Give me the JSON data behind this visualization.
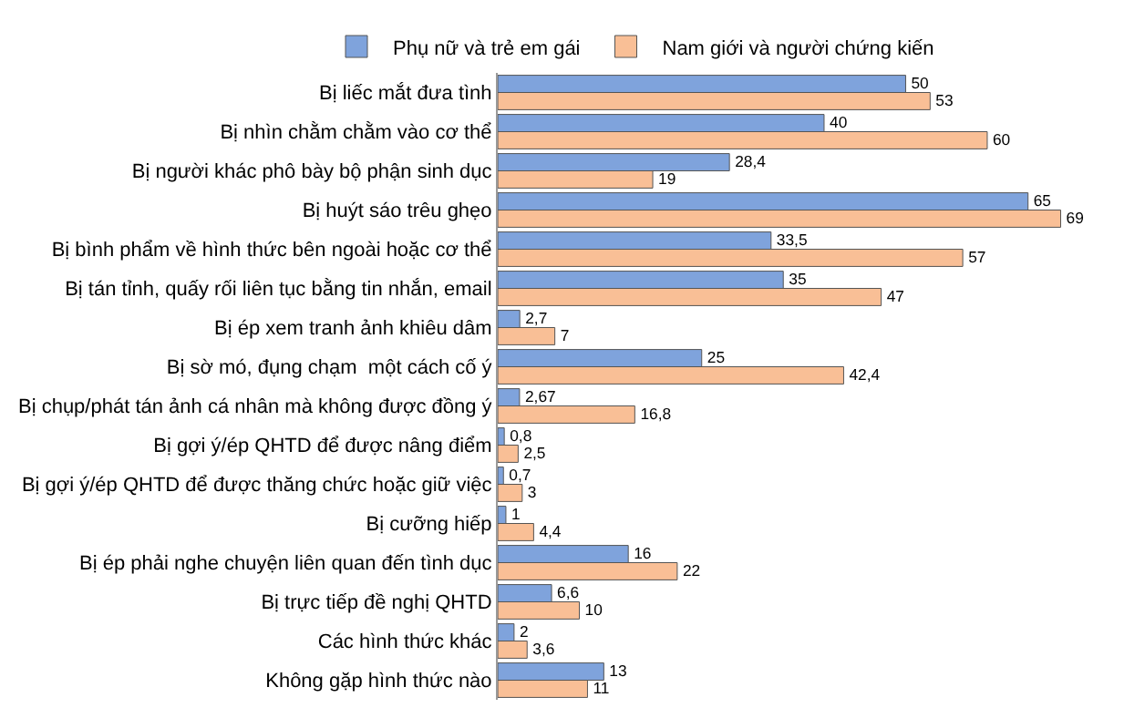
{
  "chart_data": {
    "type": "bar",
    "orientation": "horizontal",
    "legend": "top",
    "tick_labels": "y",
    "categories": [
      "Bị liếc mắt đưa tình",
      "Bị nhìn chằm chằm vào cơ thể",
      "Bị người khác phô bày bộ phận sinh dục",
      "Bị huýt sáo trêu ghẹo",
      "Bị bình phẩm về hình thức bên ngoài hoặc cơ thể",
      "Bị tán tỉnh, quấy rối liên tục bằng tin nhắn, email",
      "Bị ép xem tranh ảnh khiêu dâm",
      "Bị sờ mó, đụng chạm  một cách cố ý",
      "Bị chụp/phát tán ảnh cá nhân mà không được đồng ý",
      "Bị gợi ý/ép QHTD để được nâng điểm",
      "Bị gợi ý/ép QHTD để được thăng chức hoặc giữ việc",
      "Bị cưỡng hiếp",
      "Bị ép phải nghe chuyện liên quan đến tình dục",
      "Bị trực tiếp đề nghị QHTD",
      "Các hình thức khác",
      "Không gặp hình thức nào"
    ],
    "series": [
      {
        "name": "Phụ nữ và trẻ em gái",
        "color": "#7fa3dc",
        "values": [
          50,
          40,
          28.4,
          65,
          33.5,
          35,
          2.7,
          25,
          2.67,
          0.8,
          0.7,
          1,
          16,
          6.6,
          2,
          13
        ],
        "value_labels": [
          "50",
          "40",
          "28,4",
          "65",
          "33,5",
          "35",
          "2,7",
          "25",
          "2,67",
          "0,8",
          "0,7",
          "1",
          "16",
          "6,6",
          "2",
          "13"
        ]
      },
      {
        "name": "Nam giới và người chứng kiến",
        "color": "#f9bf96",
        "values": [
          53,
          60,
          19,
          69,
          57,
          47,
          7,
          42.4,
          16.8,
          2.5,
          3,
          4.4,
          22,
          10,
          3.6,
          11
        ],
        "value_labels": [
          "53",
          "60",
          "19",
          "69",
          "57",
          "47",
          "7",
          "42,4",
          "16,8",
          "2,5",
          "3",
          "4,4",
          "22",
          "10",
          "3,6",
          "11"
        ]
      }
    ]
  }
}
